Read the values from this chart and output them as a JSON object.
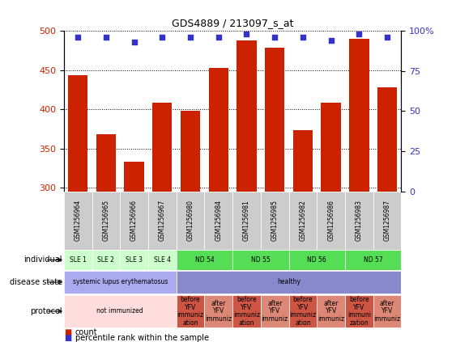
{
  "title": "GDS4889 / 213097_s_at",
  "samples": [
    "GSM1256964",
    "GSM1256965",
    "GSM1256966",
    "GSM1256967",
    "GSM1256980",
    "GSM1256984",
    "GSM1256981",
    "GSM1256985",
    "GSM1256982",
    "GSM1256986",
    "GSM1256983",
    "GSM1256987"
  ],
  "counts": [
    443,
    368,
    333,
    408,
    398,
    453,
    488,
    478,
    373,
    408,
    490,
    428
  ],
  "percentiles": [
    96,
    96,
    93,
    96,
    96,
    96,
    98,
    96,
    96,
    94,
    98,
    96
  ],
  "ylim_left": [
    295,
    500
  ],
  "ylim_right": [
    0,
    100
  ],
  "yticks_left": [
    300,
    350,
    400,
    450,
    500
  ],
  "yticks_right": [
    0,
    25,
    50,
    75,
    100
  ],
  "bar_color": "#cc2200",
  "dot_color": "#3333cc",
  "chart_bg": "#ffffff",
  "sample_box_color": "#cccccc",
  "individual_groups": [
    {
      "label": "SLE 1",
      "start": 0,
      "end": 1,
      "color": "#ccffcc"
    },
    {
      "label": "SLE 2",
      "start": 1,
      "end": 2,
      "color": "#ccffcc"
    },
    {
      "label": "SLE 3",
      "start": 2,
      "end": 3,
      "color": "#ccffcc"
    },
    {
      "label": "SLE 4",
      "start": 3,
      "end": 4,
      "color": "#ccffcc"
    },
    {
      "label": "ND 54",
      "start": 4,
      "end": 6,
      "color": "#55dd55"
    },
    {
      "label": "ND 55",
      "start": 6,
      "end": 8,
      "color": "#55dd55"
    },
    {
      "label": "ND 56",
      "start": 8,
      "end": 10,
      "color": "#55dd55"
    },
    {
      "label": "ND 57",
      "start": 10,
      "end": 12,
      "color": "#55dd55"
    }
  ],
  "disease_groups": [
    {
      "label": "systemic lupus erythematosus",
      "start": 0,
      "end": 4,
      "color": "#aaaaee"
    },
    {
      "label": "healthy",
      "start": 4,
      "end": 12,
      "color": "#8888cc"
    }
  ],
  "protocol_groups": [
    {
      "label": "not immunized",
      "start": 0,
      "end": 4,
      "color": "#ffdddd"
    },
    {
      "label": "before\nYFV\nimmuniz\nation",
      "start": 4,
      "end": 5,
      "color": "#cc5544"
    },
    {
      "label": "after\nYFV\nimmuniz",
      "start": 5,
      "end": 6,
      "color": "#dd8877"
    },
    {
      "label": "before\nYFV\nimmuniz\nation",
      "start": 6,
      "end": 7,
      "color": "#cc5544"
    },
    {
      "label": "after\nYFV\nimmuniz",
      "start": 7,
      "end": 8,
      "color": "#dd8877"
    },
    {
      "label": "before\nYFV\nimmuniz\nation",
      "start": 8,
      "end": 9,
      "color": "#cc5544"
    },
    {
      "label": "after\nYFV\nimmuniz",
      "start": 9,
      "end": 10,
      "color": "#dd8877"
    },
    {
      "label": "before\nYFV\nimmuni\nzation",
      "start": 10,
      "end": 11,
      "color": "#cc5544"
    },
    {
      "label": "after\nYFV\nimmuniz",
      "start": 11,
      "end": 12,
      "color": "#dd8877"
    }
  ],
  "row_labels": [
    "individual",
    "disease state",
    "protocol"
  ]
}
